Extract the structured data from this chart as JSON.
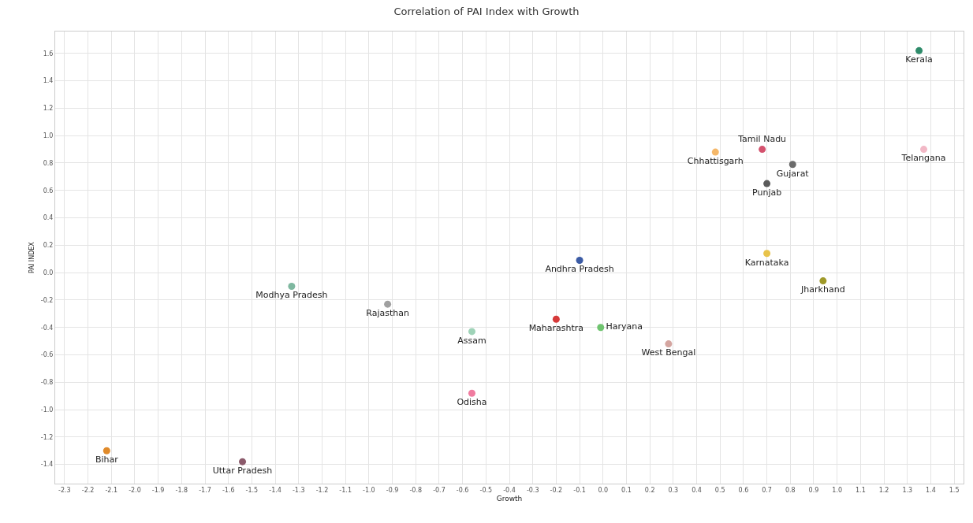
{
  "chart_data": {
    "type": "scatter",
    "title": "Correlation of PAI Index with Growth",
    "xlabel": "Growth",
    "ylabel": "PAI INDEX",
    "marker": "circle",
    "grid": true,
    "legend": false,
    "xlim": [
      -2.34,
      1.54
    ],
    "ylim": [
      -1.54,
      1.76
    ],
    "xticks": [
      -2.3,
      -2.2,
      -2.1,
      {
        "value": -2,
        "label": "-2.0"
      },
      -1.9,
      -1.8,
      -1.7,
      -1.6,
      -1.5,
      -1.4,
      -1.3,
      -1.2,
      -1.1,
      {
        "value": -1,
        "label": "-1.0"
      },
      -0.9,
      -0.8,
      -0.7,
      -0.6,
      -0.5,
      -0.4,
      -0.3,
      -0.2,
      -0.1,
      {
        "value": 0,
        "label": "0.0"
      },
      0.1,
      0.2,
      0.3,
      0.4,
      0.5,
      0.6,
      0.7,
      0.8,
      0.9,
      {
        "value": 1,
        "label": "1.0"
      },
      1.1,
      1.2,
      1.3,
      1.4,
      1.5
    ],
    "yticks": [
      -1.4,
      -1.2,
      {
        "value": -1,
        "label": "-1.0"
      },
      -0.8,
      -0.6,
      -0.4,
      -0.2,
      {
        "value": 0,
        "label": "0.0"
      },
      0.2,
      0.4,
      0.6,
      0.8,
      {
        "value": 1,
        "label": "1.0"
      },
      1.2,
      1.4,
      1.6
    ],
    "series": [
      {
        "name": "Kerala",
        "color": "#2e8b6a",
        "x": [
          1.35
        ],
        "values": [
          1.62
        ]
      },
      {
        "name": "Telangana",
        "color": "#f2b8c6",
        "x": [
          1.37
        ],
        "values": [
          0.9
        ]
      },
      {
        "name": "Tamil Nadu",
        "color": "#d4526e",
        "x": [
          0.68
        ],
        "values": [
          0.9
        ]
      },
      {
        "name": "Chhattisgarh",
        "color": "#f5b86a",
        "x": [
          0.48
        ],
        "values": [
          0.88
        ]
      },
      {
        "name": "Gujarat",
        "color": "#6b6b6b",
        "x": [
          0.81
        ],
        "values": [
          0.79
        ]
      },
      {
        "name": "Punjab",
        "color": "#5a5a5a",
        "x": [
          0.7
        ],
        "values": [
          0.65
        ]
      },
      {
        "name": "Karnataka",
        "color": "#e8c34a",
        "x": [
          0.7
        ],
        "values": [
          0.14
        ]
      },
      {
        "name": "Jharkhand",
        "color": "#a09a2a",
        "x": [
          0.94
        ],
        "values": [
          -0.06
        ]
      },
      {
        "name": "Andhra Pradesh",
        "color": "#3b5ba5",
        "x": [
          -0.1
        ],
        "values": [
          0.09
        ]
      },
      {
        "name": "Modhya Pradesh",
        "color": "#7fb8a0",
        "x": [
          -1.33
        ],
        "values": [
          -0.1
        ]
      },
      {
        "name": "Rajasthan",
        "color": "#a0a0a0",
        "x": [
          -0.92
        ],
        "values": [
          -0.23
        ]
      },
      {
        "name": "Assam",
        "color": "#9fd3b8",
        "x": [
          -0.56
        ],
        "values": [
          -0.43
        ]
      },
      {
        "name": "Odisha",
        "color": "#f07ca0",
        "x": [
          -0.56
        ],
        "values": [
          -0.88
        ]
      },
      {
        "name": "Maharashtra",
        "color": "#d63a3a",
        "x": [
          -0.2
        ],
        "values": [
          -0.34
        ]
      },
      {
        "name": "Haryana",
        "color": "#6fc46f",
        "x": [
          -0.01
        ],
        "values": [
          -0.4
        ]
      },
      {
        "name": "West Bengal",
        "color": "#d4a5a0",
        "x": [
          0.28
        ],
        "values": [
          -0.52
        ]
      },
      {
        "name": "Uttar Pradesh",
        "color": "#8b5a6b",
        "x": [
          -1.54
        ],
        "values": [
          -1.38
        ]
      },
      {
        "name": "Bihar",
        "color": "#e08a2a",
        "x": [
          -2.12
        ],
        "values": [
          -1.3
        ]
      }
    ]
  }
}
